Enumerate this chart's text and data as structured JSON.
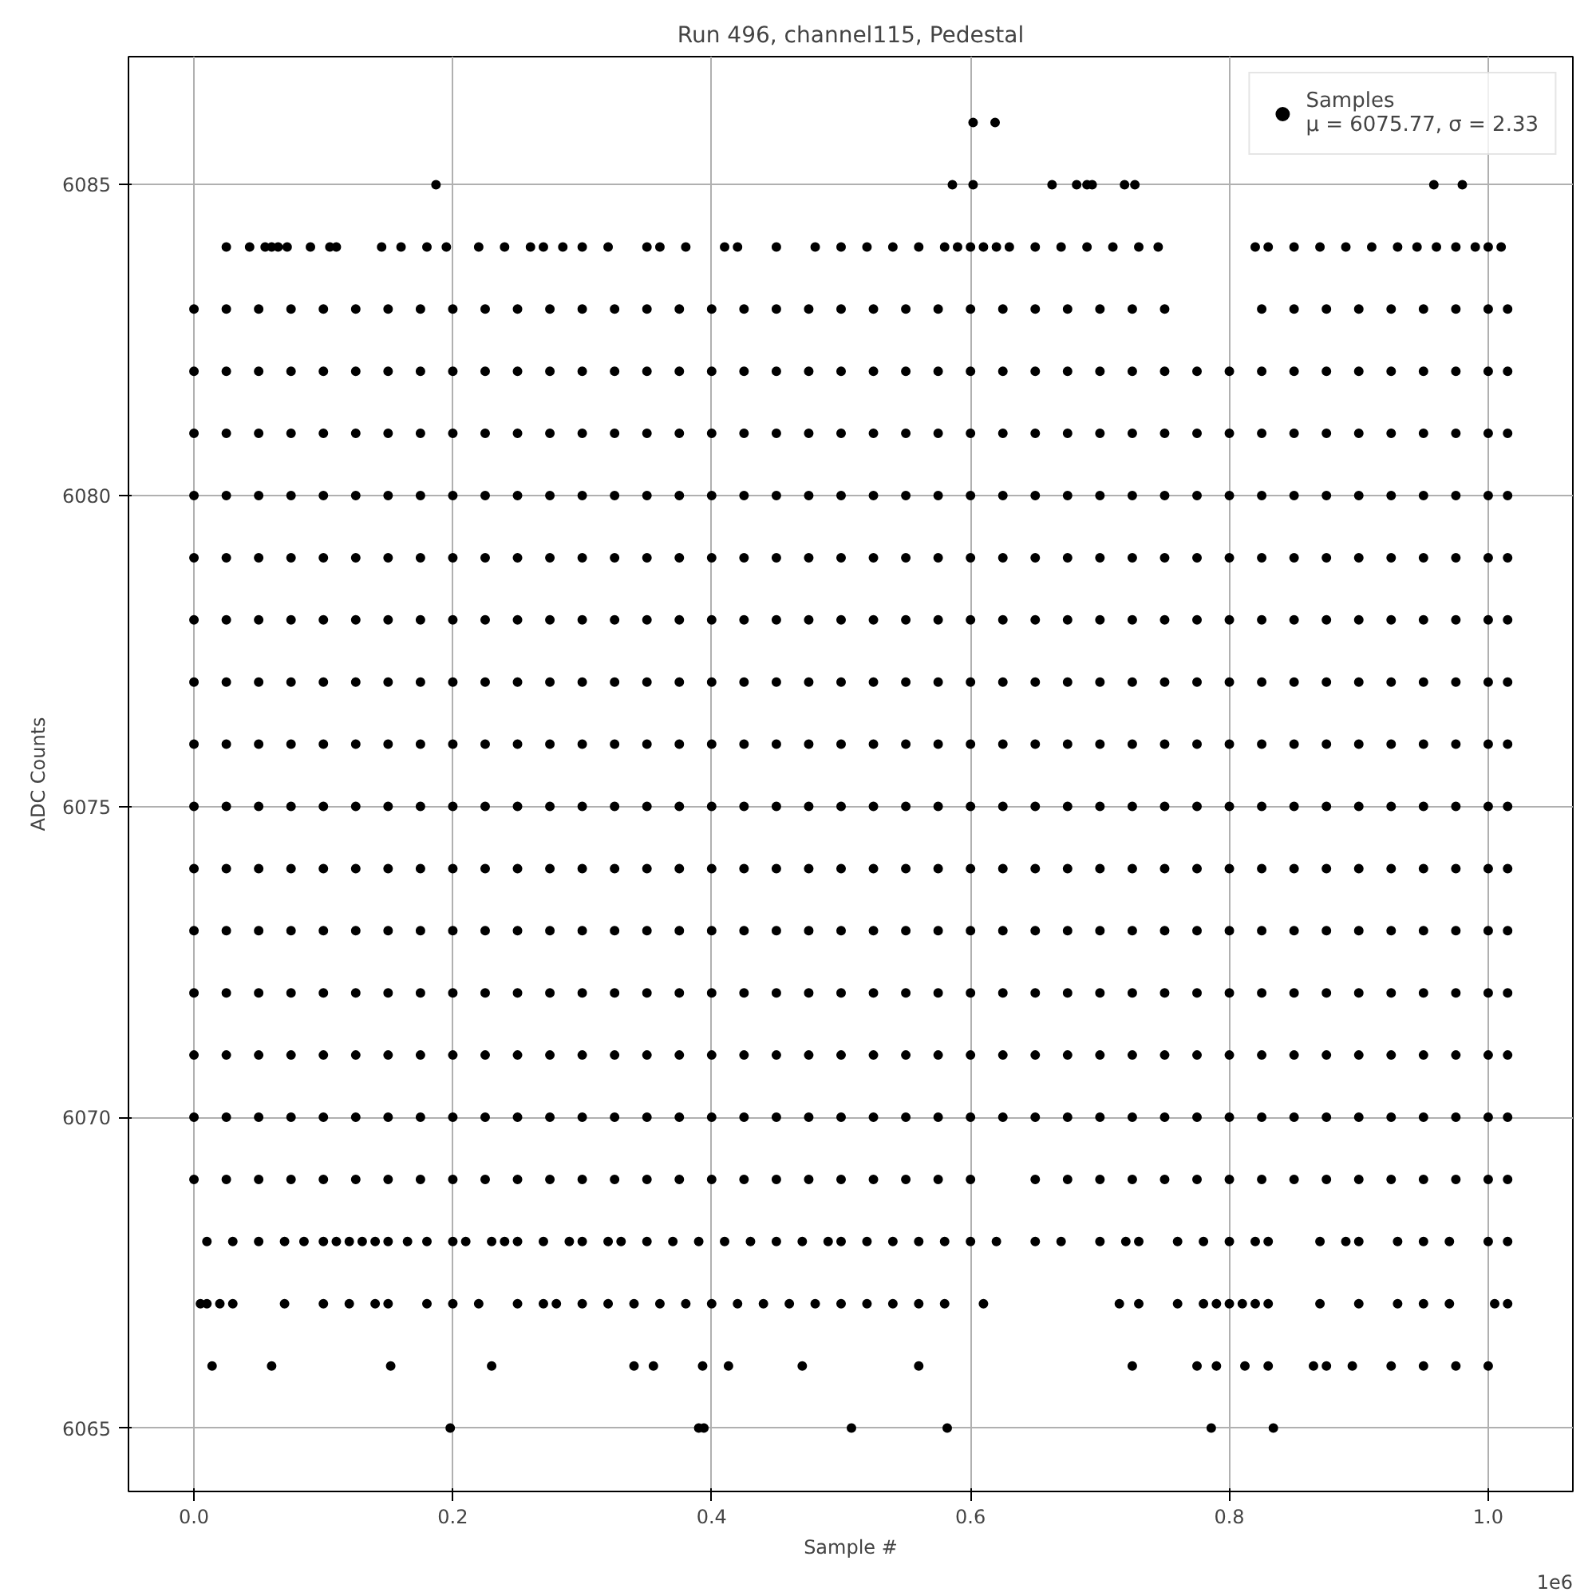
{
  "chart_data": {
    "type": "scatter",
    "title": "Run 496, channel115, Pedestal",
    "xlabel": "Sample #",
    "ylabel": "ADC Counts",
    "annotations": [
      "1e6"
    ],
    "xlim": [
      -0.0506,
      1.0654
    ],
    "ylim": [
      6063.98,
      6087.06
    ],
    "xticks": [
      {
        "value": 0,
        "label": "0.0"
      },
      0.2,
      0.4,
      0.6,
      0.8,
      {
        "value": 1,
        "label": "1.0"
      }
    ],
    "yticks": [
      6065,
      6070,
      6075,
      6080,
      6085
    ],
    "grid": true,
    "legend": "top right",
    "marker": "circle",
    "x": [
      0,
      0.025,
      0.05,
      0.075,
      0.1,
      0.125,
      0.15,
      0.175,
      0.2,
      0.225,
      0.25,
      0.275,
      0.3,
      0.325,
      0.35,
      0.375,
      0.4,
      0.425,
      0.45,
      0.475,
      0.5,
      0.525,
      0.55,
      0.575,
      0.6,
      0.625,
      0.65,
      0.675,
      0.7,
      0.725,
      0.75,
      0.775,
      0.8,
      0.825,
      0.85,
      0.875,
      0.9,
      0.925,
      0.95,
      0.975,
      1.0,
      1.015
    ],
    "series": [
      {
        "name": "Samples\nμ = 6075.77, σ = 2.33",
        "color": "#000000",
        "values": [
          6076,
          6076,
          6076,
          6076,
          6076,
          6076,
          6076,
          6076,
          6076,
          6076,
          6076,
          6076,
          6076,
          6076,
          6076,
          6076,
          6076,
          6076,
          6076,
          6076,
          6076,
          6076,
          6076,
          6076,
          6076,
          6076,
          6076,
          6076,
          6076,
          6076,
          6076,
          6076,
          6076,
          6076,
          6076,
          6076,
          6076,
          6076,
          6076,
          6076,
          6076,
          6076
        ]
      },
      {
        "color": "#000000",
        "values": [
          6070,
          6070,
          6070,
          6070,
          6070,
          6070,
          6070,
          6070,
          6070,
          6070,
          6070,
          6070,
          6070,
          6070,
          6070,
          6070,
          6070,
          6070,
          6070,
          6070,
          6070,
          6070,
          6070,
          6070,
          6070,
          6070,
          6070,
          6070,
          6070,
          6070,
          6070,
          6070,
          6070,
          6070,
          6070,
          6070,
          6070,
          6070,
          6070,
          6070,
          6070,
          6070
        ]
      },
      {
        "color": "#000000",
        "values": [
          6071,
          6071,
          6071,
          6071,
          6071,
          6071,
          6071,
          6071,
          6071,
          6071,
          6071,
          6071,
          6071,
          6071,
          6071,
          6071,
          6071,
          6071,
          6071,
          6071,
          6071,
          6071,
          6071,
          6071,
          6071,
          6071,
          6071,
          6071,
          6071,
          6071,
          6071,
          6071,
          6071,
          6071,
          6071,
          6071,
          6071,
          6071,
          6071,
          6071,
          6071,
          6071
        ]
      },
      {
        "color": "#000000",
        "values": [
          6072,
          6072,
          6072,
          6072,
          6072,
          6072,
          6072,
          6072,
          6072,
          6072,
          6072,
          6072,
          6072,
          6072,
          6072,
          6072,
          6072,
          6072,
          6072,
          6072,
          6072,
          6072,
          6072,
          6072,
          6072,
          6072,
          6072,
          6072,
          6072,
          6072,
          6072,
          6072,
          6072,
          6072,
          6072,
          6072,
          6072,
          6072,
          6072,
          6072,
          6072,
          6072
        ]
      },
      {
        "color": "#000000",
        "values": [
          6073,
          6073,
          6073,
          6073,
          6073,
          6073,
          6073,
          6073,
          6073,
          6073,
          6073,
          6073,
          6073,
          6073,
          6073,
          6073,
          6073,
          6073,
          6073,
          6073,
          6073,
          6073,
          6073,
          6073,
          6073,
          6073,
          6073,
          6073,
          6073,
          6073,
          6073,
          6073,
          6073,
          6073,
          6073,
          6073,
          6073,
          6073,
          6073,
          6073,
          6073,
          6073
        ]
      },
      {
        "color": "#000000",
        "values": [
          6074,
          6074,
          6074,
          6074,
          6074,
          6074,
          6074,
          6074,
          6074,
          6074,
          6074,
          6074,
          6074,
          6074,
          6074,
          6074,
          6074,
          6074,
          6074,
          6074,
          6074,
          6074,
          6074,
          6074,
          6074,
          6074,
          6074,
          6074,
          6074,
          6074,
          6074,
          6074,
          6074,
          6074,
          6074,
          6074,
          6074,
          6074,
          6074,
          6074,
          6074,
          6074
        ]
      },
      {
        "color": "#000000",
        "values": [
          6075,
          6075,
          6075,
          6075,
          6075,
          6075,
          6075,
          6075,
          6075,
          6075,
          6075,
          6075,
          6075,
          6075,
          6075,
          6075,
          6075,
          6075,
          6075,
          6075,
          6075,
          6075,
          6075,
          6075,
          6075,
          6075,
          6075,
          6075,
          6075,
          6075,
          6075,
          6075,
          6075,
          6075,
          6075,
          6075,
          6075,
          6075,
          6075,
          6075,
          6075,
          6075
        ]
      },
      {
        "color": "#000000",
        "values": [
          6077,
          6077,
          6077,
          6077,
          6077,
          6077,
          6077,
          6077,
          6077,
          6077,
          6077,
          6077,
          6077,
          6077,
          6077,
          6077,
          6077,
          6077,
          6077,
          6077,
          6077,
          6077,
          6077,
          6077,
          6077,
          6077,
          6077,
          6077,
          6077,
          6077,
          6077,
          6077,
          6077,
          6077,
          6077,
          6077,
          6077,
          6077,
          6077,
          6077,
          6077,
          6077
        ]
      },
      {
        "color": "#000000",
        "values": [
          6078,
          6078,
          6078,
          6078,
          6078,
          6078,
          6078,
          6078,
          6078,
          6078,
          6078,
          6078,
          6078,
          6078,
          6078,
          6078,
          6078,
          6078,
          6078,
          6078,
          6078,
          6078,
          6078,
          6078,
          6078,
          6078,
          6078,
          6078,
          6078,
          6078,
          6078,
          6078,
          6078,
          6078,
          6078,
          6078,
          6078,
          6078,
          6078,
          6078,
          6078,
          6078
        ]
      },
      {
        "color": "#000000",
        "values": [
          6079,
          6079,
          6079,
          6079,
          6079,
          6079,
          6079,
          6079,
          6079,
          6079,
          6079,
          6079,
          6079,
          6079,
          6079,
          6079,
          6079,
          6079,
          6079,
          6079,
          6079,
          6079,
          6079,
          6079,
          6079,
          6079,
          6079,
          6079,
          6079,
          6079,
          6079,
          6079,
          6079,
          6079,
          6079,
          6079,
          6079,
          6079,
          6079,
          6079,
          6079,
          6079
        ]
      },
      {
        "color": "#000000",
        "values": [
          6080,
          6080,
          6080,
          6080,
          6080,
          6080,
          6080,
          6080,
          6080,
          6080,
          6080,
          6080,
          6080,
          6080,
          6080,
          6080,
          6080,
          6080,
          6080,
          6080,
          6080,
          6080,
          6080,
          6080,
          6080,
          6080,
          6080,
          6080,
          6080,
          6080,
          6080,
          6080,
          6080,
          6080,
          6080,
          6080,
          6080,
          6080,
          6080,
          6080,
          6080,
          6080
        ]
      },
      {
        "color": "#000000",
        "values": [
          6081,
          6081,
          6081,
          6081,
          6081,
          6081,
          6081,
          6081,
          6081,
          6081,
          6081,
          6081,
          6081,
          6081,
          6081,
          6081,
          6081,
          6081,
          6081,
          6081,
          6081,
          6081,
          6081,
          6081,
          6081,
          6081,
          6081,
          6081,
          6081,
          6081,
          6081,
          6081,
          6081,
          6081,
          6081,
          6081,
          6081,
          6081,
          6081,
          6081,
          6081,
          6081
        ]
      },
      {
        "color": "#000000",
        "values": [
          6082,
          6082,
          6082,
          6082,
          6082,
          6082,
          6082,
          6082,
          6082,
          6082,
          6082,
          6082,
          6082,
          6082,
          6082,
          6082,
          6082,
          6082,
          6082,
          6082,
          6082,
          6082,
          6082,
          6082,
          6082,
          6082,
          6082,
          6082,
          6082,
          6082,
          6082,
          6082,
          6082,
          6082,
          6082,
          6082,
          6082,
          6082,
          6082,
          6082,
          6082,
          6082
        ]
      },
      {
        "color": "#000000",
        "values": [
          6083,
          6083,
          6083,
          6083,
          6083,
          6083,
          6083,
          6083,
          6083,
          6083,
          6083,
          6083,
          6083,
          6083,
          6083,
          6083,
          6083,
          6083,
          6083,
          6083,
          6083,
          6083,
          6083,
          6083,
          6083,
          6083,
          6083,
          6083,
          6083,
          6083,
          6083,
          null,
          null,
          6083,
          6083,
          6083,
          6083,
          6083,
          6083,
          6083,
          6083,
          6083
        ]
      },
      {
        "color": "#000000",
        "values": [
          6069,
          6069,
          6069,
          6069,
          6069,
          6069,
          6069,
          6069,
          6069,
          6069,
          6069,
          6069,
          6069,
          6069,
          6069,
          6069,
          6069,
          6069,
          6069,
          6069,
          6069,
          6069,
          6069,
          6069,
          6069,
          null,
          6069,
          6069,
          6069,
          6069,
          6069,
          6069,
          6069,
          6069,
          6069,
          6069,
          6069,
          6069,
          6069,
          6069,
          6069,
          6069
        ]
      },
      {
        "color": "#000000",
        "x": [
          0.602,
          0.619
        ],
        "values": [
          6086,
          6086
        ]
      },
      {
        "color": "#000000",
        "x": [
          0.187,
          0.586,
          0.602,
          0.663,
          0.682,
          0.69,
          0.694,
          0.719,
          0.727,
          0.958,
          0.98
        ],
        "values": [
          6085,
          6085,
          6085,
          6085,
          6085,
          6085,
          6085,
          6085,
          6085,
          6085,
          6085
        ]
      },
      {
        "color": "#000000",
        "x": [
          0.025,
          0.043,
          0.055,
          0.06,
          0.065,
          0.072,
          0.09,
          0.105,
          0.11,
          0.145,
          0.16,
          0.18,
          0.195,
          0.22,
          0.24,
          0.26,
          0.27,
          0.285,
          0.3,
          0.32,
          0.35,
          0.36,
          0.38,
          0.41,
          0.42,
          0.45,
          0.48,
          0.5,
          0.52,
          0.54,
          0.56,
          0.58,
          0.59,
          0.6,
          0.61,
          0.62,
          0.63,
          0.65,
          0.67,
          0.69,
          0.71,
          0.73,
          0.745,
          0.82,
          0.83,
          0.85,
          0.87,
          0.89,
          0.91,
          0.93,
          0.945,
          0.96,
          0.975,
          0.99,
          1.0,
          1.01
        ],
        "values": [
          6084,
          6084,
          6084,
          6084,
          6084,
          6084,
          6084,
          6084,
          6084,
          6084,
          6084,
          6084,
          6084,
          6084,
          6084,
          6084,
          6084,
          6084,
          6084,
          6084,
          6084,
          6084,
          6084,
          6084,
          6084,
          6084,
          6084,
          6084,
          6084,
          6084,
          6084,
          6084,
          6084,
          6084,
          6084,
          6084,
          6084,
          6084,
          6084,
          6084,
          6084,
          6084,
          6084,
          6084,
          6084,
          6084,
          6084,
          6084,
          6084,
          6084,
          6084,
          6084,
          6084,
          6084,
          6084,
          6084
        ]
      },
      {
        "color": "#000000",
        "x": [
          0.01,
          0.03,
          0.05,
          0.07,
          0.085,
          0.1,
          0.11,
          0.12,
          0.13,
          0.14,
          0.15,
          0.165,
          0.18,
          0.2,
          0.21,
          0.23,
          0.24,
          0.25,
          0.27,
          0.29,
          0.3,
          0.32,
          0.33,
          0.35,
          0.37,
          0.39,
          0.41,
          0.43,
          0.45,
          0.47,
          0.49,
          0.5,
          0.52,
          0.54,
          0.56,
          0.58,
          0.6,
          0.62,
          0.65,
          0.67,
          0.7,
          0.72,
          0.73,
          0.76,
          0.78,
          0.8,
          0.82,
          0.83,
          0.87,
          0.89,
          0.9,
          0.93,
          0.95,
          0.97,
          1.0,
          1.015
        ],
        "values": [
          6068,
          6068,
          6068,
          6068,
          6068,
          6068,
          6068,
          6068,
          6068,
          6068,
          6068,
          6068,
          6068,
          6068,
          6068,
          6068,
          6068,
          6068,
          6068,
          6068,
          6068,
          6068,
          6068,
          6068,
          6068,
          6068,
          6068,
          6068,
          6068,
          6068,
          6068,
          6068,
          6068,
          6068,
          6068,
          6068,
          6068,
          6068,
          6068,
          6068,
          6068,
          6068,
          6068,
          6068,
          6068,
          6068,
          6068,
          6068,
          6068,
          6068,
          6068,
          6068,
          6068,
          6068,
          6068,
          6068
        ]
      },
      {
        "color": "#000000",
        "x": [
          0.005,
          0.01,
          0.02,
          0.03,
          0.07,
          0.1,
          0.12,
          0.14,
          0.15,
          0.18,
          0.2,
          0.22,
          0.25,
          0.27,
          0.28,
          0.3,
          0.32,
          0.34,
          0.36,
          0.38,
          0.4,
          0.42,
          0.44,
          0.46,
          0.48,
          0.5,
          0.52,
          0.54,
          0.56,
          0.58,
          0.61,
          0.715,
          0.73,
          0.76,
          0.78,
          0.79,
          0.8,
          0.81,
          0.82,
          0.83,
          0.87,
          0.9,
          0.93,
          0.95,
          0.97,
          1.005,
          1.015
        ],
        "values": [
          6067,
          6067,
          6067,
          6067,
          6067,
          6067,
          6067,
          6067,
          6067,
          6067,
          6067,
          6067,
          6067,
          6067,
          6067,
          6067,
          6067,
          6067,
          6067,
          6067,
          6067,
          6067,
          6067,
          6067,
          6067,
          6067,
          6067,
          6067,
          6067,
          6067,
          6067,
          6067,
          6067,
          6067,
          6067,
          6067,
          6067,
          6067,
          6067,
          6067,
          6067,
          6067,
          6067,
          6067,
          6067,
          6067,
          6067
        ]
      },
      {
        "color": "#000000",
        "x": [
          0.014,
          0.06,
          0.152,
          0.23,
          0.34,
          0.355,
          0.393,
          0.413,
          0.47,
          0.56,
          0.725,
          0.775,
          0.79,
          0.812,
          0.83,
          0.865,
          0.875,
          0.895,
          0.925,
          0.95,
          0.975,
          1.0
        ],
        "values": [
          6066,
          6066,
          6066,
          6066,
          6066,
          6066,
          6066,
          6066,
          6066,
          6066,
          6066,
          6066,
          6066,
          6066,
          6066,
          6066,
          6066,
          6066,
          6066,
          6066,
          6066,
          6066
        ]
      },
      {
        "color": "#000000",
        "x": [
          0.198,
          0.39,
          0.394,
          0.508,
          0.582,
          0.786,
          0.834
        ],
        "values": [
          6065,
          6065,
          6065,
          6065,
          6065,
          6065,
          6065
        ]
      }
    ]
  }
}
